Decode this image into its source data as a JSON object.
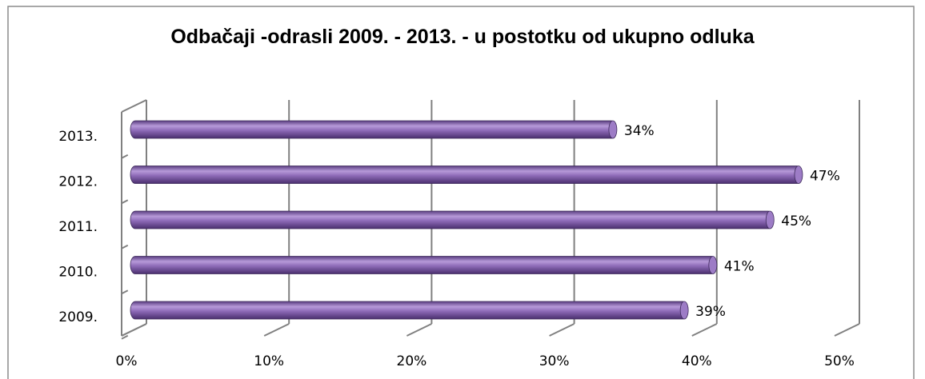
{
  "chart_data": {
    "type": "bar",
    "orientation": "horizontal",
    "title": "Odbačaji -odrasli 2009. - 2013. - u postotku od ukupno odluka",
    "categories": [
      "2009.",
      "2010.",
      "2011.",
      "2012.",
      "2013."
    ],
    "values": [
      39,
      41,
      45,
      47,
      34
    ],
    "value_labels": [
      "39%",
      "41%",
      "45%",
      "47%",
      "34%"
    ],
    "color": "#8e6bb8",
    "xlim": [
      0,
      50
    ],
    "xticks": [
      {
        "value": 0,
        "label": "0%"
      },
      {
        "value": 10,
        "label": "10%"
      },
      {
        "value": 20,
        "label": "20%"
      },
      {
        "value": 30,
        "label": "30%"
      },
      {
        "value": 40,
        "label": "40%"
      },
      {
        "value": 50,
        "label": "50%"
      }
    ],
    "grid": true
  }
}
